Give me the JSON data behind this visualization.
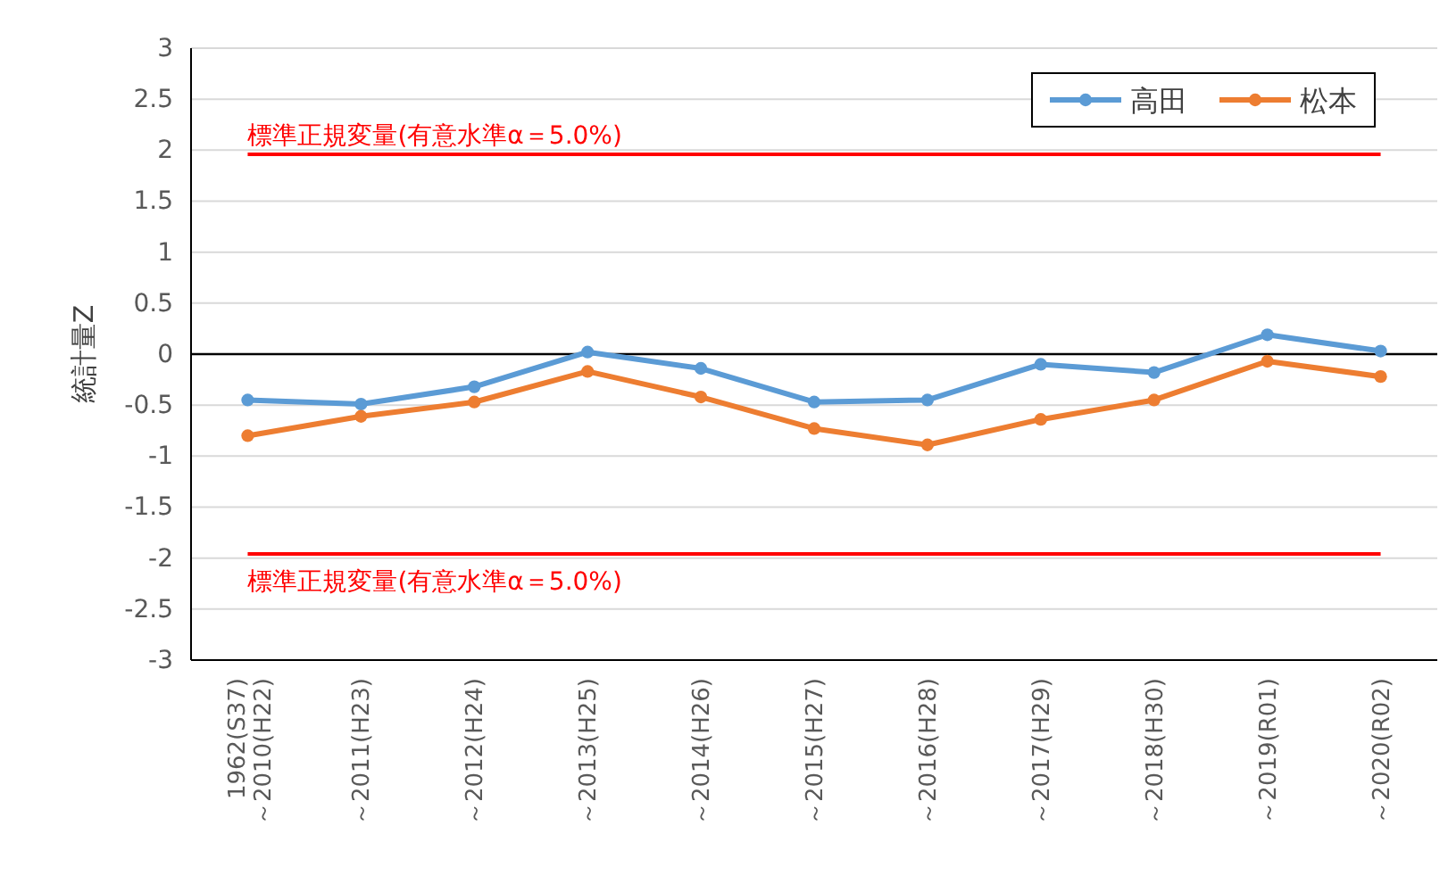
{
  "chart_data": {
    "type": "line",
    "ylabel": "統計量Z",
    "categories": [
      "1962(S37)～2010(H22)",
      "～2011(H23)",
      "～2012(H24)",
      "～2013(H25)",
      "～2014(H26)",
      "～2015(H27)",
      "～2016(H28)",
      "～2017(H29)",
      "～2018(H30)",
      "～2019(R01)",
      "～2020(R02)"
    ],
    "series": [
      {
        "name": "高田",
        "color": "#5b9bd5",
        "values": [
          -0.45,
          -0.49,
          -0.32,
          0.02,
          -0.14,
          -0.47,
          -0.45,
          -0.1,
          -0.18,
          0.19,
          0.03
        ]
      },
      {
        "name": "松本",
        "color": "#ed7d31",
        "values": [
          -0.8,
          -0.61,
          -0.47,
          -0.17,
          -0.42,
          -0.73,
          -0.89,
          -0.64,
          -0.45,
          -0.07,
          -0.22
        ]
      }
    ],
    "ylim": [
      -3,
      3
    ],
    "yticks": [
      -3,
      -2.5,
      -2,
      -1.5,
      -1,
      -0.5,
      0,
      0.5,
      1,
      1.5,
      2,
      2.5,
      3
    ],
    "ref_lines": [
      {
        "axis": "y",
        "value": 1.96,
        "label": "標準正規変量(有意水準α＝5.0%)",
        "color": "#ff0000"
      },
      {
        "axis": "y",
        "value": -1.96,
        "label": "標準正規変量(有意水準α＝5.0%)",
        "color": "#ff0000"
      },
      {
        "axis": "y",
        "value": 0,
        "color": "#000000"
      }
    ],
    "grid": "y",
    "legend": "top right",
    "marker": "circle",
    "line_style": "solid"
  }
}
